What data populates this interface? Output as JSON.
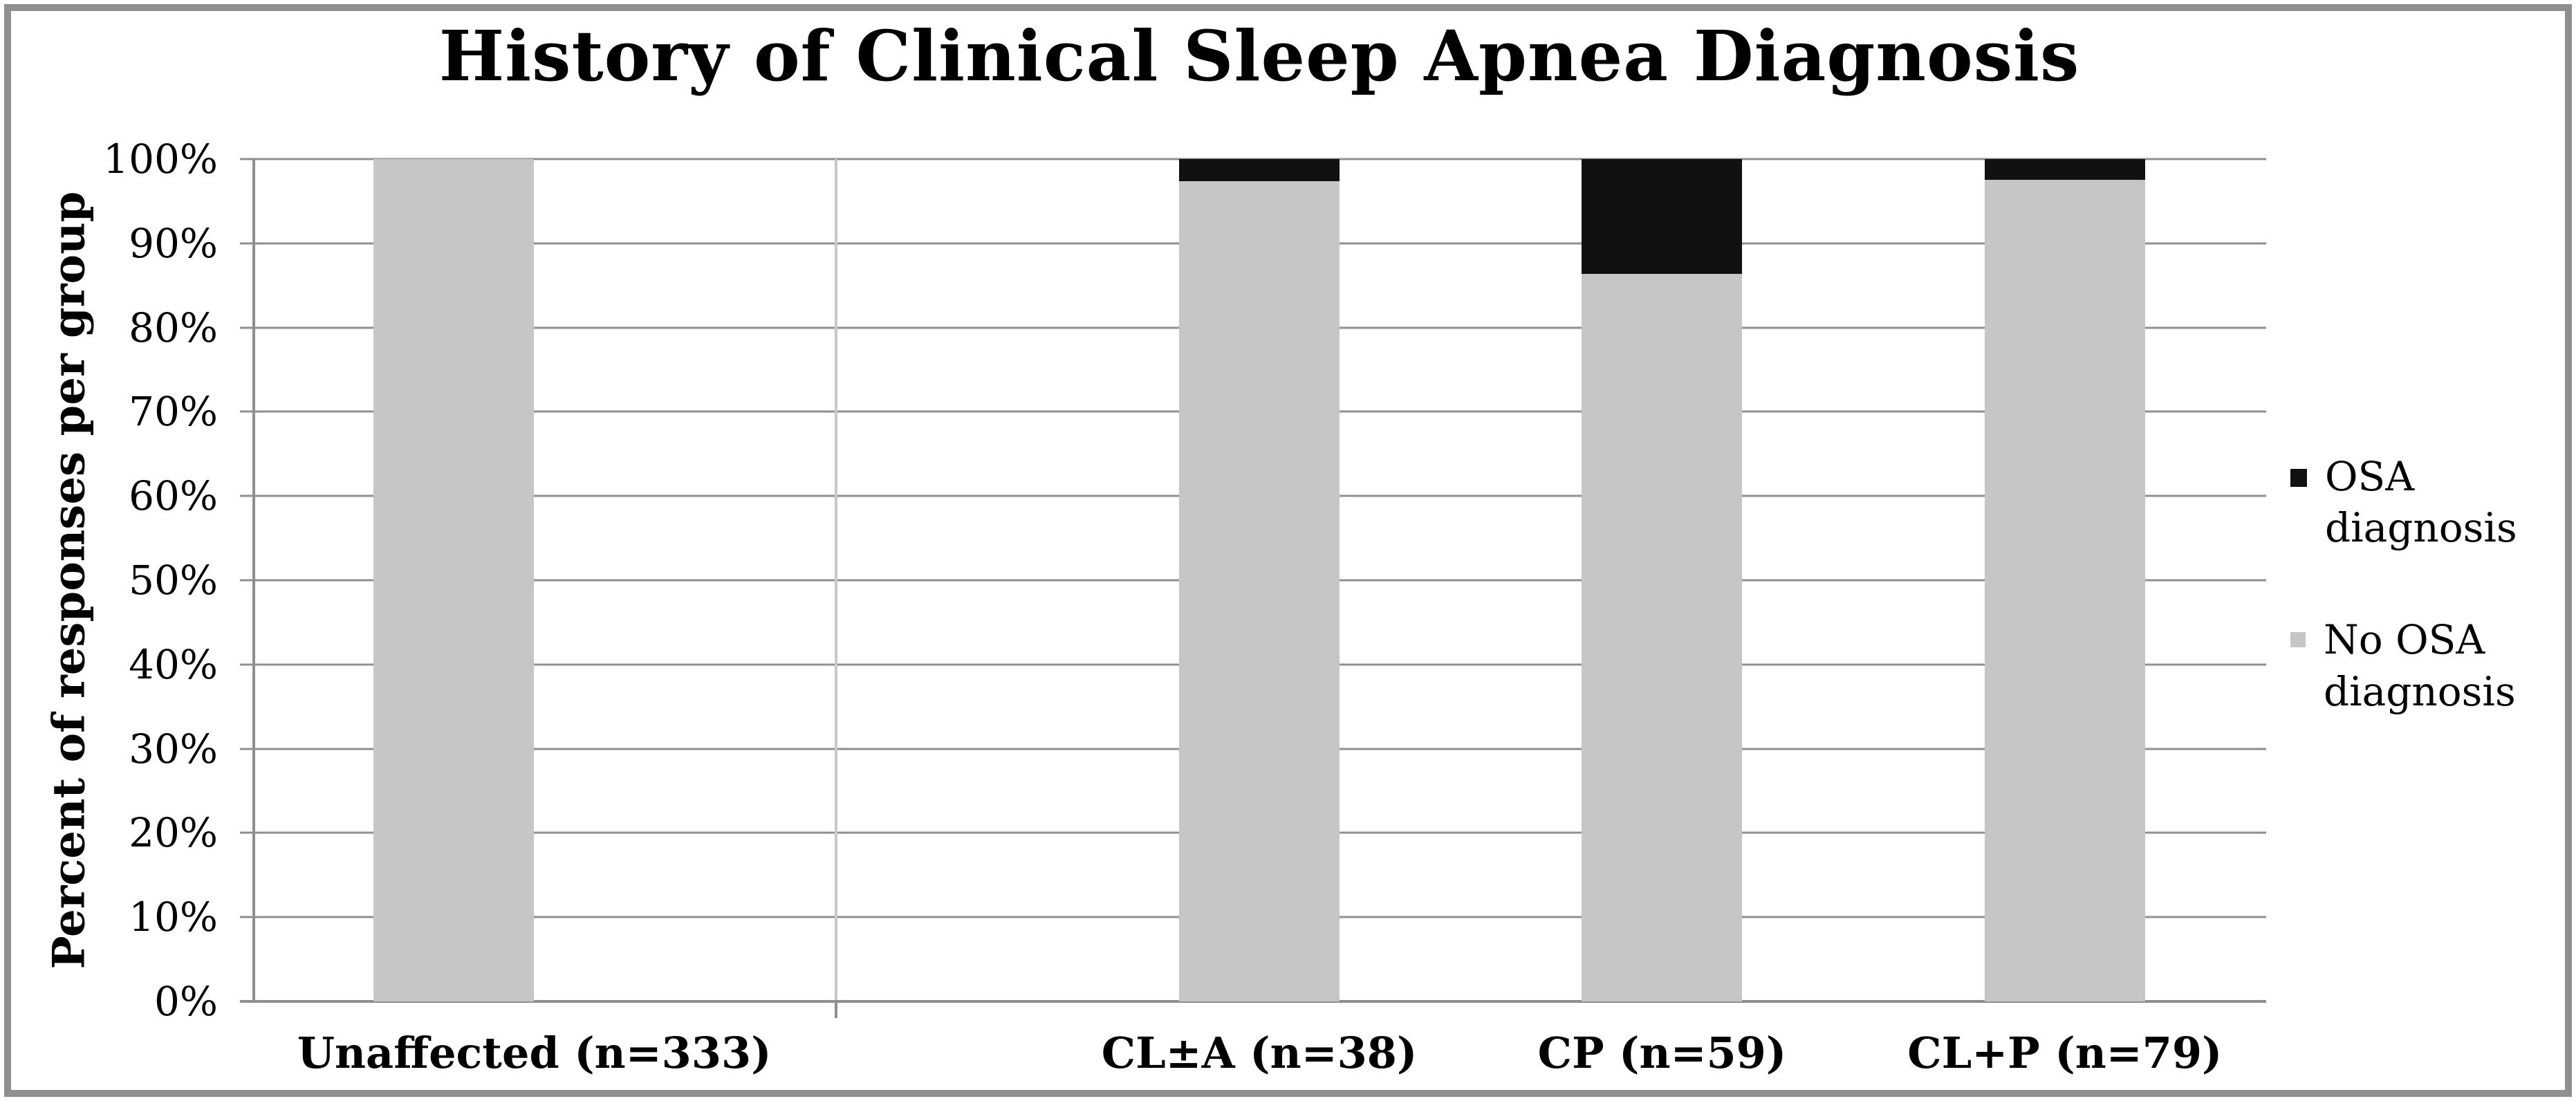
{
  "title": "History of Clinical Sleep Apnea Diagnosis",
  "y_axis_title": "Percent of responses per group",
  "colors": {
    "osa": "#111111",
    "no_osa": "#c6c6c6",
    "gridline": "#8f8f8f",
    "separator": "#c9c9c9",
    "frame": "#8f8f8f"
  },
  "chart_data": {
    "type": "bar",
    "stacked": true,
    "title": "History of Clinical Sleep Apnea Diagnosis",
    "xlabel": "",
    "ylabel": "Percent of responses per group",
    "categories": [
      "Unaffected (n=333)",
      "CL±A (n=38)",
      "CP (n=59)",
      "CL+P (n=79)"
    ],
    "series": [
      {
        "name": "OSA diagnosis",
        "color": "#111111",
        "values": [
          0,
          2.6,
          13.6,
          2.5
        ]
      },
      {
        "name": "No OSA diagnosis",
        "color": "#c6c6c6",
        "values": [
          100,
          97.4,
          86.4,
          97.5
        ]
      }
    ],
    "units": "percent",
    "ylim": [
      0,
      100
    ],
    "ytick_step": 10,
    "yticks": [
      "0%",
      "10%",
      "20%",
      "30%",
      "40%",
      "50%",
      "60%",
      "70%",
      "80%",
      "90%",
      "100%"
    ],
    "grid": "horizontal",
    "legend_position": "right",
    "legend": [
      {
        "label": "OSA diagnosis",
        "color": "#111111"
      },
      {
        "label": "No OSA diagnosis",
        "color": "#c6c6c6"
      }
    ]
  }
}
